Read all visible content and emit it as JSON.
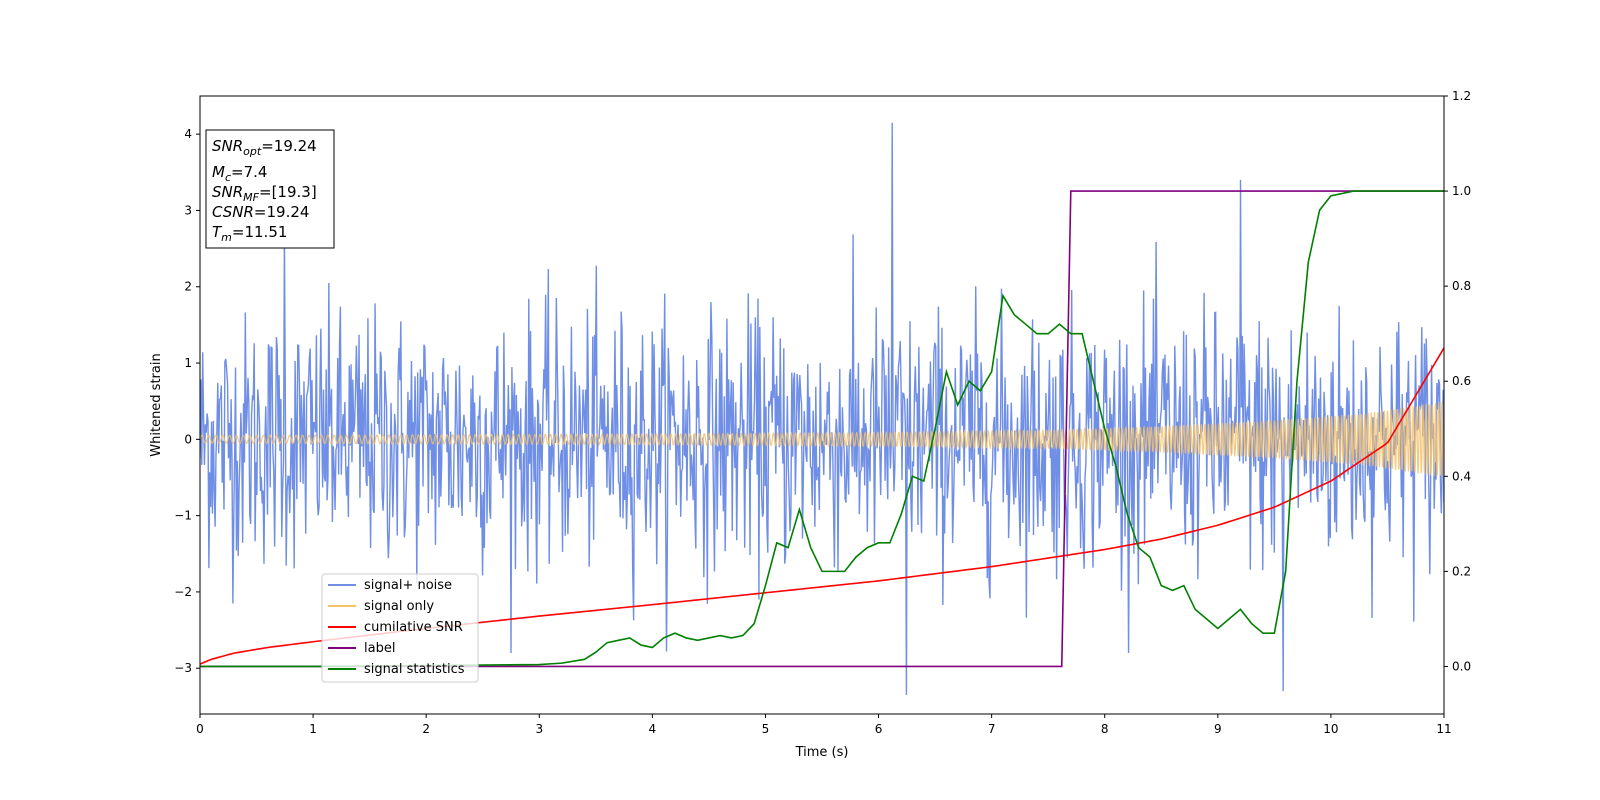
{
  "chart_data": {
    "type": "line",
    "xlabel": "Time (s)",
    "ylabel": "Whitened strain",
    "xlim": [
      0,
      11
    ],
    "ylim": [
      -3.6,
      4.5
    ],
    "y2lim": [
      -0.1,
      1.2
    ],
    "x_ticks": [
      "0",
      "1",
      "2",
      "3",
      "4",
      "5",
      "6",
      "7",
      "8",
      "9",
      "10",
      "11"
    ],
    "y_ticks": [
      "−3",
      "−2",
      "−1",
      "0",
      "1",
      "2",
      "3",
      "4"
    ],
    "y2_ticks": [
      "0.0",
      "0.2",
      "0.4",
      "0.6",
      "0.8",
      "1.0",
      "1.2"
    ],
    "info_box": [
      {
        "base": "SNR",
        "sub": "opt",
        "value": "=19.24"
      },
      {
        "base": "M",
        "sub": "c",
        "value": "=7.4"
      },
      {
        "base": "SNR",
        "sub": "MF",
        "value": "=[19.3]"
      },
      {
        "base": "CSNR",
        "sub": "",
        "value": "=19.24"
      },
      {
        "base": "T",
        "sub": "m",
        "value": "=11.51"
      }
    ],
    "legend_position": "lower-left",
    "series": [
      {
        "name": "signal+ noise",
        "color": "#6f8ee6",
        "axis": "left",
        "description_values": {
          "typical_range": [
            -2.0,
            2.0
          ],
          "peaks": [
            [
              0.75,
              2.7
            ],
            [
              6.12,
              4.15
            ],
            [
              6.25,
              -3.35
            ],
            [
              9.2,
              3.4
            ],
            [
              9.58,
              -3.3
            ]
          ]
        }
      },
      {
        "name": "signal only",
        "color": "#f5c169",
        "axis": "left",
        "envelope": [
          [
            0,
            0.05
          ],
          [
            2,
            0.06
          ],
          [
            4,
            0.07
          ],
          [
            6,
            0.09
          ],
          [
            7.5,
            0.12
          ],
          [
            8.5,
            0.17
          ],
          [
            9.5,
            0.25
          ],
          [
            10.3,
            0.34
          ],
          [
            11,
            0.5
          ]
        ]
      },
      {
        "name": "cumilative SNR",
        "color": "#ff0000",
        "axis": "right",
        "x": [
          0,
          0.1,
          0.3,
          0.6,
          1,
          2,
          3,
          4,
          5,
          6,
          7,
          7.5,
          8,
          8.5,
          9,
          9.5,
          10,
          10.5,
          11
        ],
        "y": [
          0.005,
          0.015,
          0.028,
          0.04,
          0.052,
          0.08,
          0.106,
          0.13,
          0.155,
          0.18,
          0.21,
          0.228,
          0.246,
          0.268,
          0.297,
          0.335,
          0.39,
          0.47,
          0.67
        ]
      },
      {
        "name": "label",
        "color": "#800080",
        "axis": "right",
        "x": [
          0,
          7.62,
          7.7,
          11
        ],
        "y": [
          0.0,
          0.0,
          1.0,
          1.0
        ]
      },
      {
        "name": "signal statistics",
        "color": "#008000",
        "axis": "right",
        "x": [
          0,
          1,
          2,
          3,
          3.2,
          3.4,
          3.5,
          3.6,
          3.7,
          3.8,
          3.9,
          4.0,
          4.1,
          4.2,
          4.3,
          4.4,
          4.5,
          4.6,
          4.7,
          4.8,
          4.9,
          5.0,
          5.1,
          5.2,
          5.3,
          5.4,
          5.5,
          5.6,
          5.7,
          5.8,
          5.9,
          6.0,
          6.1,
          6.2,
          6.3,
          6.4,
          6.5,
          6.6,
          6.7,
          6.8,
          6.9,
          7.0,
          7.1,
          7.2,
          7.3,
          7.4,
          7.5,
          7.6,
          7.7,
          7.8,
          7.9,
          8.0,
          8.1,
          8.2,
          8.3,
          8.4,
          8.5,
          8.6,
          8.7,
          8.8,
          8.9,
          9.0,
          9.1,
          9.2,
          9.3,
          9.4,
          9.5,
          9.6,
          9.7,
          9.8,
          9.9,
          10.0,
          10.2,
          10.5,
          11
        ],
        "y": [
          0.0,
          0.0,
          0.002,
          0.004,
          0.007,
          0.015,
          0.03,
          0.05,
          0.055,
          0.06,
          0.045,
          0.04,
          0.06,
          0.07,
          0.06,
          0.055,
          0.06,
          0.065,
          0.06,
          0.065,
          0.09,
          0.17,
          0.26,
          0.25,
          0.33,
          0.25,
          0.2,
          0.2,
          0.2,
          0.23,
          0.25,
          0.26,
          0.26,
          0.32,
          0.4,
          0.39,
          0.5,
          0.62,
          0.55,
          0.6,
          0.58,
          0.62,
          0.78,
          0.74,
          0.72,
          0.7,
          0.7,
          0.72,
          0.7,
          0.7,
          0.6,
          0.5,
          0.42,
          0.32,
          0.25,
          0.23,
          0.17,
          0.16,
          0.17,
          0.12,
          0.1,
          0.08,
          0.1,
          0.12,
          0.09,
          0.07,
          0.07,
          0.2,
          0.6,
          0.85,
          0.96,
          0.99,
          1.0,
          1.0,
          1.0
        ]
      }
    ]
  }
}
